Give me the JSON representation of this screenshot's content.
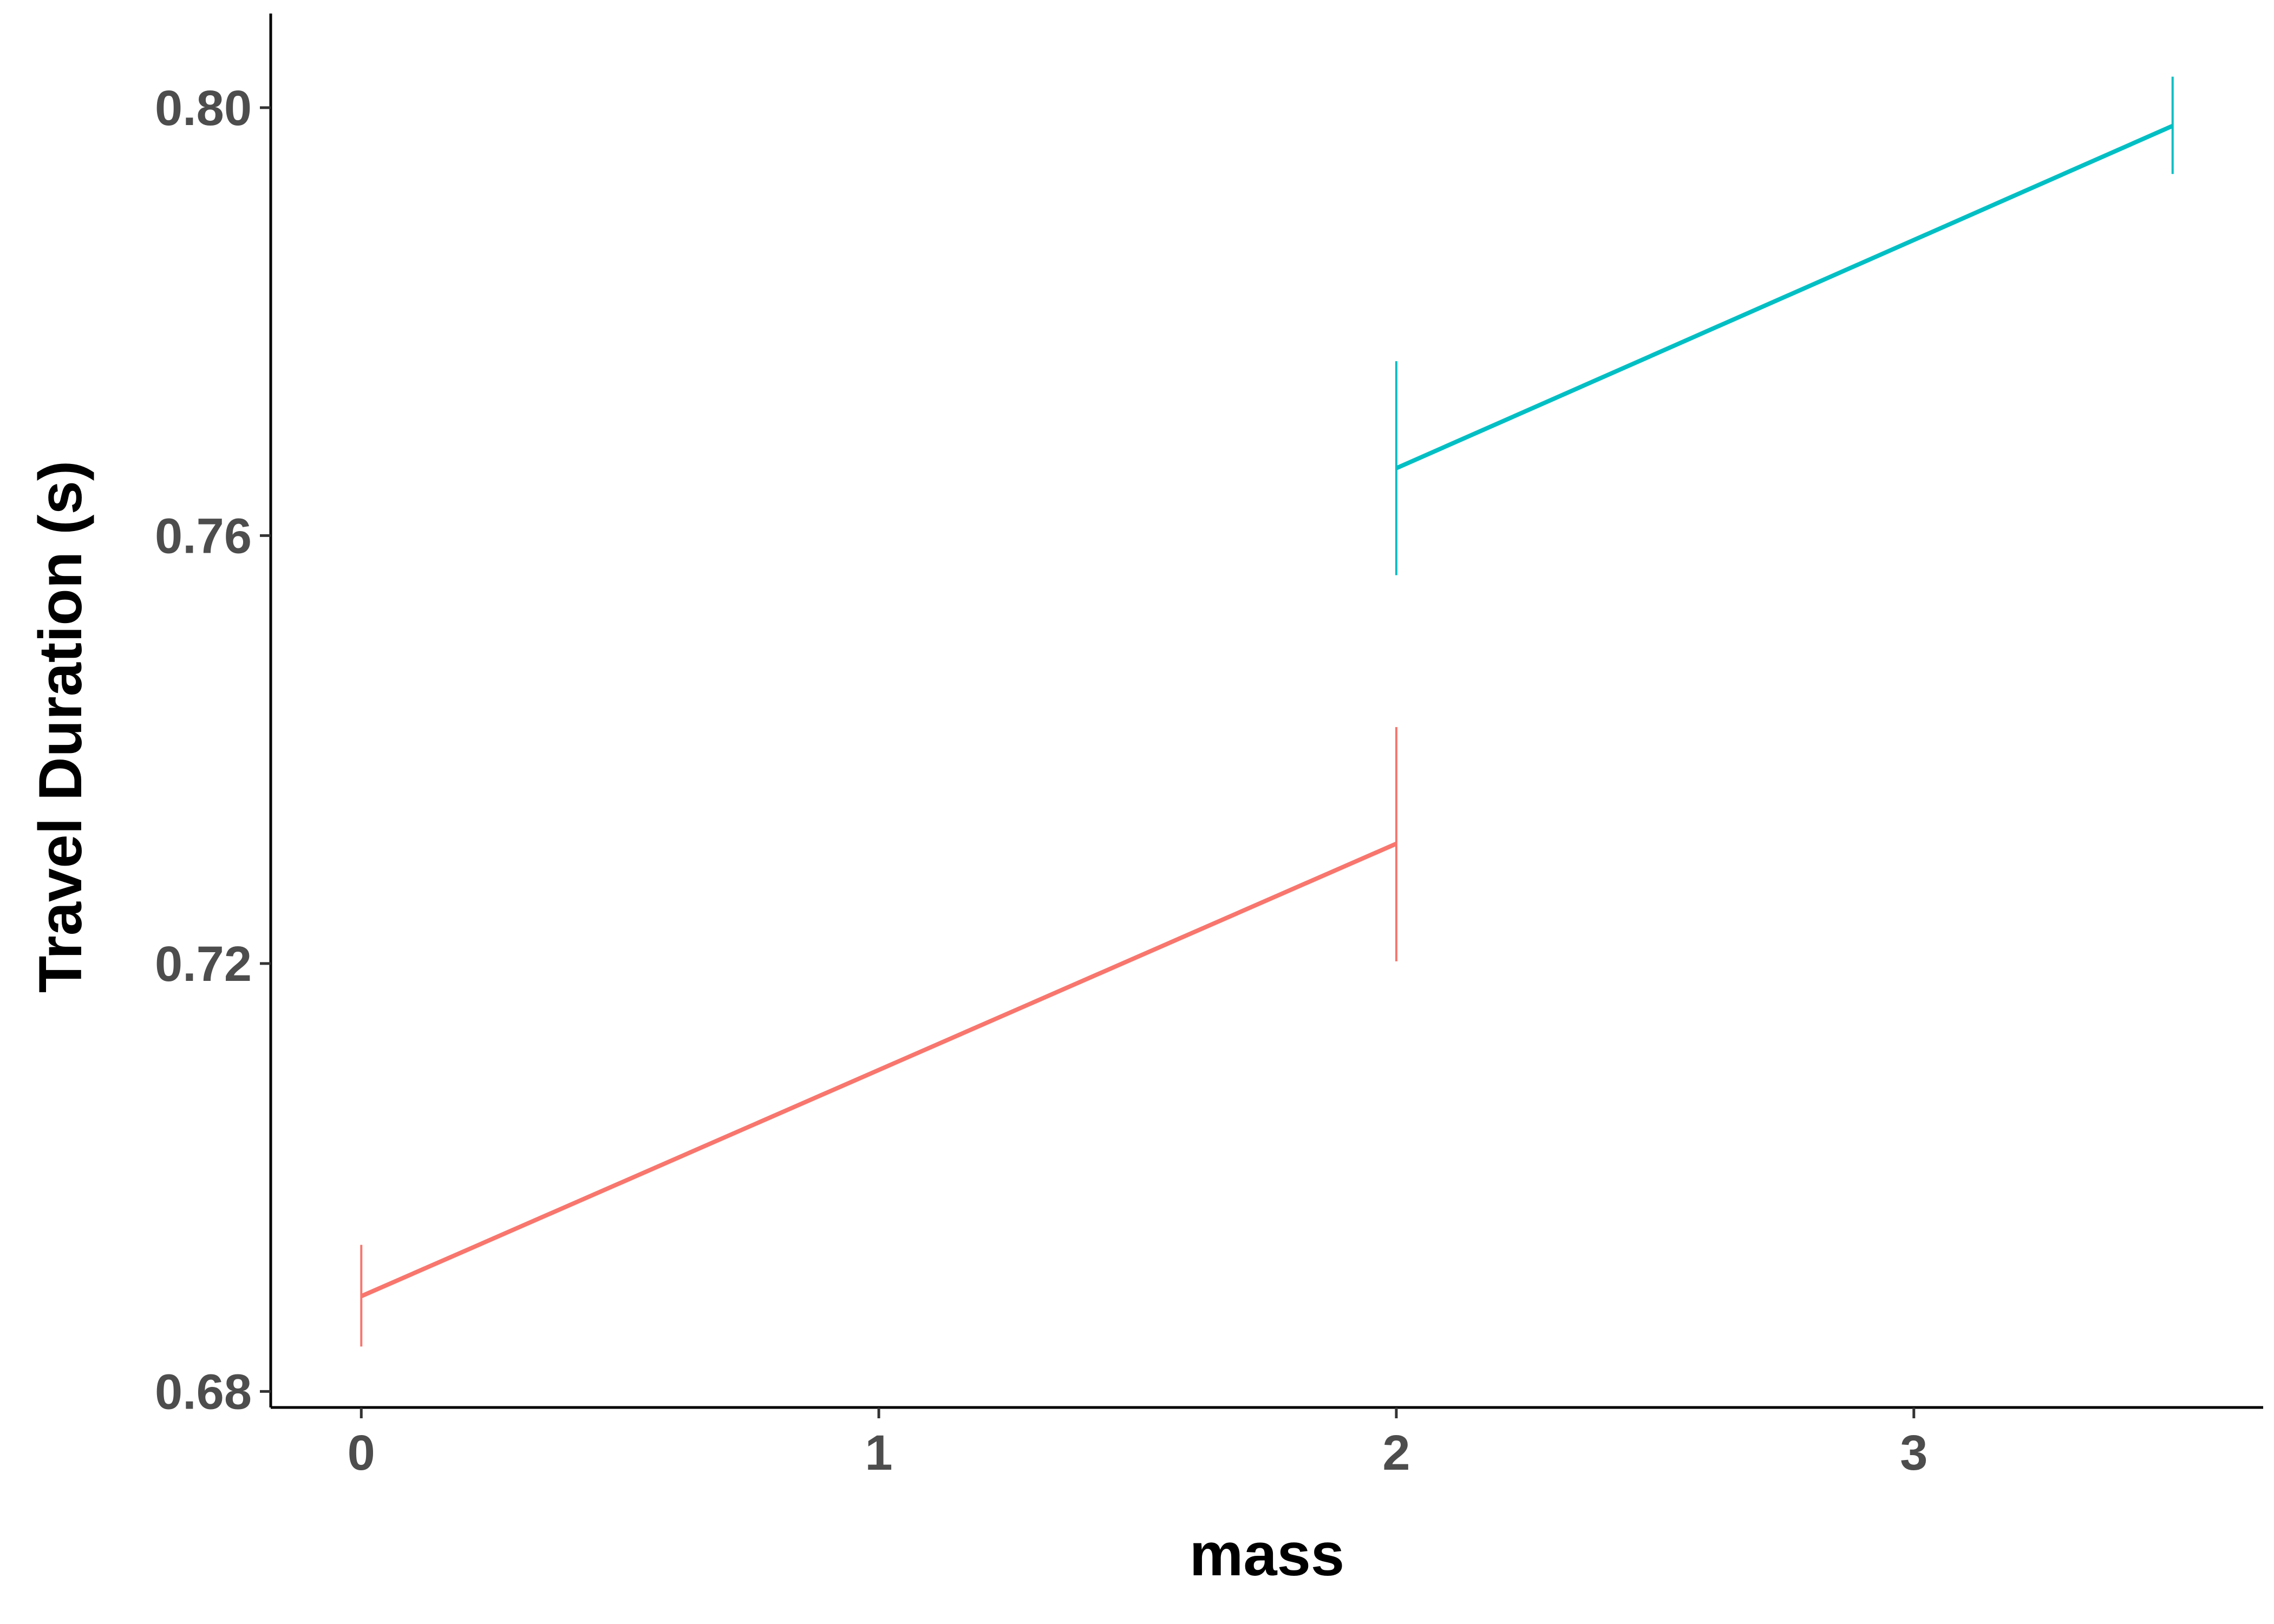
{
  "chart_data": {
    "type": "line",
    "title": "",
    "xlabel": "mass",
    "ylabel": "Travel Duration (s)",
    "xlim": [
      -0.175,
      3.675
    ],
    "ylim": [
      0.6785,
      0.8088
    ],
    "x_ticks": [
      0,
      1,
      2,
      3
    ],
    "x_tick_labels": [
      "0",
      "1",
      "2",
      "3"
    ],
    "y_ticks": [
      0.68,
      0.72,
      0.76,
      0.8
    ],
    "y_tick_labels": [
      "0.68",
      "0.72",
      "0.76",
      "0.80"
    ],
    "grid": false,
    "legend": "none",
    "series": [
      {
        "color": "#F8766D",
        "points": [
          {
            "x": 0,
            "y": 0.6889,
            "ymin": 0.6842,
            "ymax": 0.6937
          },
          {
            "x": 2,
            "y": 0.7312,
            "ymin": 0.7202,
            "ymax": 0.7421
          }
        ]
      },
      {
        "color": "#00BFC4",
        "points": [
          {
            "x": 2,
            "y": 0.7663,
            "ymin": 0.7563,
            "ymax": 0.7763
          },
          {
            "x": 3.5,
            "y": 0.7983,
            "ymin": 0.7938,
            "ymax": 0.8029
          }
        ]
      }
    ]
  }
}
